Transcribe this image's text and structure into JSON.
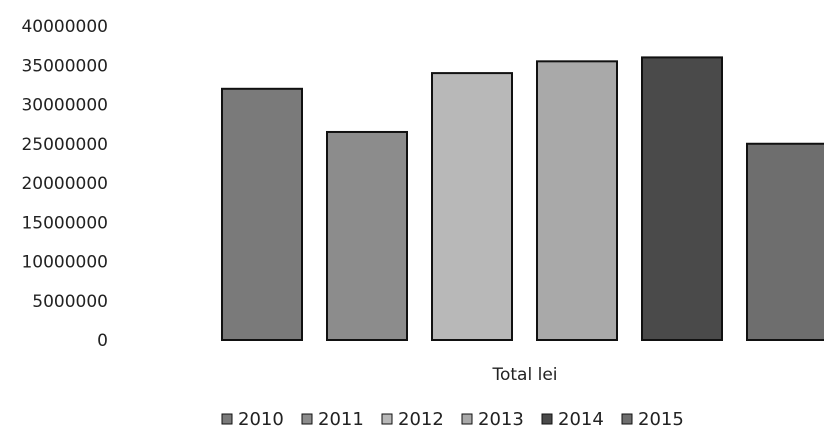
{
  "chart_data": {
    "type": "bar",
    "title": "",
    "xlabel": "",
    "ylabel": "",
    "categories": [
      "Total lei"
    ],
    "ylim": [
      0,
      40000000
    ],
    "yticks": [
      0,
      5000000,
      10000000,
      15000000,
      20000000,
      25000000,
      30000000,
      35000000,
      40000000
    ],
    "grid": false,
    "legend_position": "bottom",
    "series": [
      {
        "name": "2010",
        "values": [
          32000000
        ],
        "color": "#7a7a7a"
      },
      {
        "name": "2011",
        "values": [
          26500000
        ],
        "color": "#8c8c8c"
      },
      {
        "name": "2012",
        "values": [
          34000000
        ],
        "color": "#b8b8b8"
      },
      {
        "name": "2013",
        "values": [
          35500000
        ],
        "color": "#a9a9a9"
      },
      {
        "name": "2014",
        "values": [
          36000000
        ],
        "color": "#4a4a4a"
      },
      {
        "name": "2015",
        "values": [
          25000000
        ],
        "color": "#6e6e6e"
      }
    ]
  }
}
